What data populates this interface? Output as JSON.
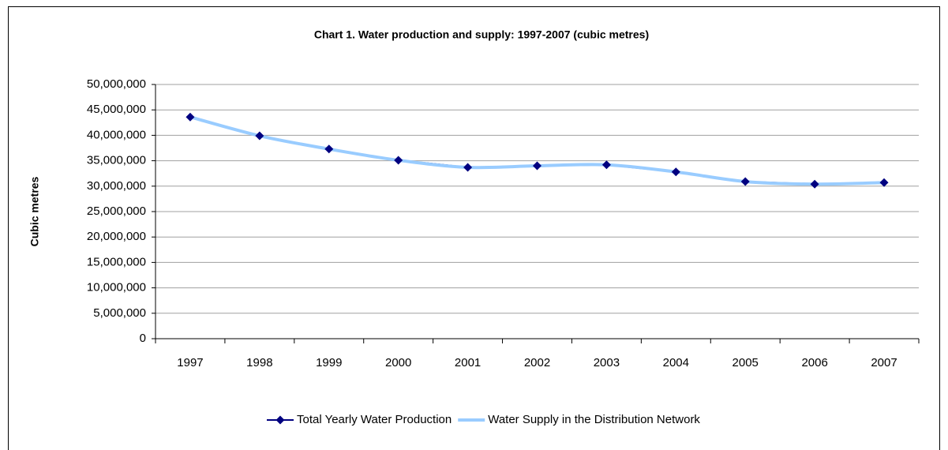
{
  "chart_data": {
    "type": "line",
    "title": "Chart 1.  Water production and supply: 1997-2007 (cubic metres)",
    "y_label": "Cubic metres",
    "categories": [
      "1997",
      "1998",
      "1999",
      "2000",
      "2001",
      "2002",
      "2003",
      "2004",
      "2005",
      "2006",
      "2007"
    ],
    "series": [
      {
        "name": "Total Yearly Water Production",
        "color": "#000080",
        "marker": "diamond",
        "values": [
          43600000,
          39900000,
          37300000,
          35100000,
          33700000,
          34000000,
          34200000,
          32800000,
          30900000,
          30400000,
          30700000
        ]
      },
      {
        "name": "Water Supply in the Distribution Network",
        "color": "#99ccff",
        "smooth": true,
        "values": [
          43600000,
          39900000,
          37300000,
          35100000,
          33700000,
          34000000,
          34200000,
          32800000,
          30900000,
          30400000,
          30700000
        ]
      }
    ],
    "ylim": [
      0,
      50000000
    ],
    "yticks": [
      0,
      {
        "value": 5000000,
        "label": "5,000,000"
      },
      {
        "value": 10000000,
        "label": "10,000,000"
      },
      {
        "value": 15000000,
        "label": "15,000,000"
      },
      {
        "value": 20000000,
        "label": "20,000,000"
      },
      {
        "value": 25000000,
        "label": "25,000,000"
      },
      {
        "value": 30000000,
        "label": "30,000,000"
      },
      {
        "value": 35000000,
        "label": "35,000,000"
      },
      {
        "value": 40000000,
        "label": "40,000,000"
      },
      {
        "value": 45000000,
        "label": "45,000,000"
      },
      {
        "value": 50000000,
        "label": "50,000,000"
      }
    ],
    "grid": true,
    "legend": "bottom"
  }
}
